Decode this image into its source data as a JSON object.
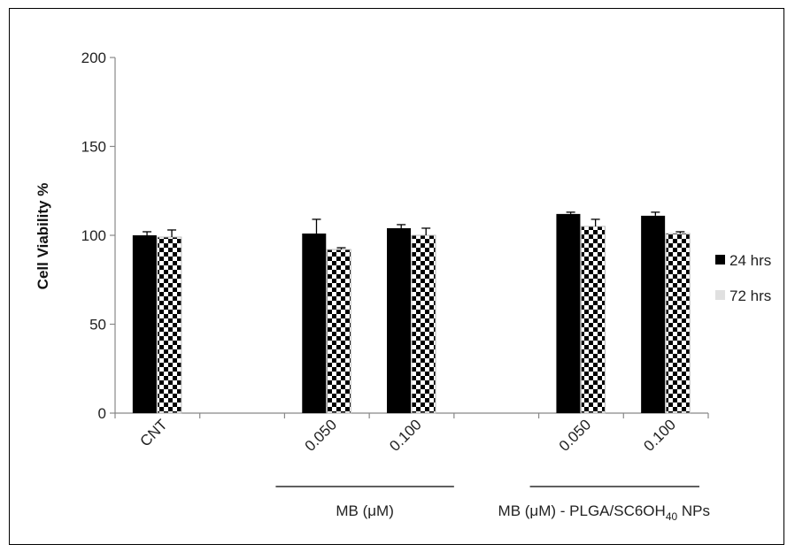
{
  "chart_data": {
    "type": "bar",
    "ylabel": "Cell Viability %",
    "ylim": [
      0,
      200
    ],
    "yticks": [
      0,
      50,
      100,
      150,
      200
    ],
    "categories": [
      "CNT",
      "0.050",
      "0.100",
      "0.050",
      "0.100"
    ],
    "series": [
      {
        "name": "24 hrs",
        "values": [
          100,
          101,
          104,
          112,
          111
        ],
        "errors": [
          2,
          8,
          2,
          1,
          2
        ],
        "color": "#000000"
      },
      {
        "name": "72 hrs",
        "values": [
          99,
          92,
          100,
          105,
          101
        ],
        "errors": [
          4,
          1,
          4,
          4,
          1
        ],
        "color": "#e0e0e0"
      }
    ],
    "groups": [
      {
        "label": "MB (μM)"
      },
      {
        "label_main": "MB (μM) - PLGA/SC6OH",
        "label_sub": "40",
        "label_tail": " NPs"
      }
    ],
    "legend_position": "right",
    "grid": false
  }
}
